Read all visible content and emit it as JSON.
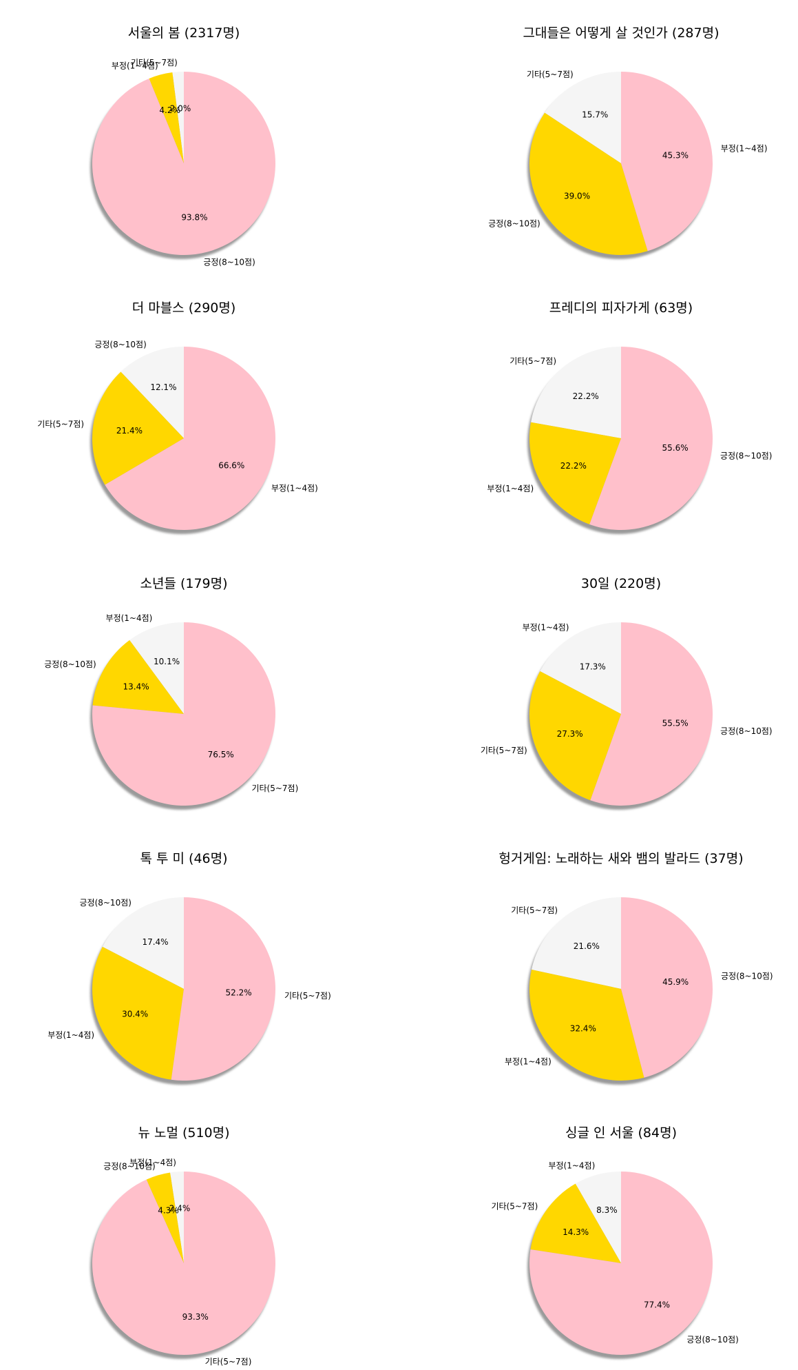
{
  "chart_data": [
    {
      "type": "pie",
      "title": "서울의 봄 (2317명)",
      "labels": [
        "기타(5~7점)",
        "부정(1~4점)",
        "긍정(8~10점)"
      ],
      "values": [
        2.0,
        4.2,
        93.8
      ],
      "value_labels": [
        "2.0%",
        "4.2%",
        "93.8%"
      ],
      "colors": [
        "#f5f5f5",
        "#ffd700",
        "#ffc0cb"
      ]
    },
    {
      "type": "pie",
      "title": "그대들은 어떻게 살 것인가 (287명)",
      "labels": [
        "기타(5~7점)",
        "긍정(8~10점)",
        "부정(1~4점)"
      ],
      "values": [
        15.7,
        39.0,
        45.3
      ],
      "value_labels": [
        "15.7%",
        "39.0%",
        "45.3%"
      ],
      "colors": [
        "#f5f5f5",
        "#ffd700",
        "#ffc0cb"
      ]
    },
    {
      "type": "pie",
      "title": "더 마블스 (290명)",
      "labels": [
        "긍정(8~10점)",
        "기타(5~7점)",
        "부정(1~4점)"
      ],
      "values": [
        12.1,
        21.4,
        66.6
      ],
      "value_labels": [
        "12.1%",
        "21.4%",
        "66.6%"
      ],
      "colors": [
        "#f5f5f5",
        "#ffd700",
        "#ffc0cb"
      ]
    },
    {
      "type": "pie",
      "title": "프레디의 피자가게 (63명)",
      "labels": [
        "기타(5~7점)",
        "부정(1~4점)",
        "긍정(8~10점)"
      ],
      "values": [
        22.2,
        22.2,
        55.6
      ],
      "value_labels": [
        "22.2%",
        "22.2%",
        "55.6%"
      ],
      "colors": [
        "#f5f5f5",
        "#ffd700",
        "#ffc0cb"
      ]
    },
    {
      "type": "pie",
      "title": "소년들 (179명)",
      "labels": [
        "부정(1~4점)",
        "긍정(8~10점)",
        "기타(5~7점)"
      ],
      "values": [
        10.1,
        13.4,
        76.5
      ],
      "value_labels": [
        "10.1%",
        "13.4%",
        "76.5%"
      ],
      "colors": [
        "#f5f5f5",
        "#ffd700",
        "#ffc0cb"
      ]
    },
    {
      "type": "pie",
      "title": "30일 (220명)",
      "labels": [
        "부정(1~4점)",
        "기타(5~7점)",
        "긍정(8~10점)"
      ],
      "values": [
        17.3,
        27.3,
        55.5
      ],
      "value_labels": [
        "17.3%",
        "27.3%",
        "55.5%"
      ],
      "colors": [
        "#f5f5f5",
        "#ffd700",
        "#ffc0cb"
      ]
    },
    {
      "type": "pie",
      "title": "톡 투 미 (46명)",
      "labels": [
        "긍정(8~10점)",
        "부정(1~4점)",
        "기타(5~7점)"
      ],
      "values": [
        17.4,
        30.4,
        52.2
      ],
      "value_labels": [
        "17.4%",
        "30.4%",
        "52.2%"
      ],
      "colors": [
        "#f5f5f5",
        "#ffd700",
        "#ffc0cb"
      ]
    },
    {
      "type": "pie",
      "title": "헝거게임: 노래하는 새와 뱀의 발라드 (37명)",
      "labels": [
        "기타(5~7점)",
        "부정(1~4점)",
        "긍정(8~10점)"
      ],
      "values": [
        21.6,
        32.4,
        45.9
      ],
      "value_labels": [
        "21.6%",
        "32.4%",
        "45.9%"
      ],
      "colors": [
        "#f5f5f5",
        "#ffd700",
        "#ffc0cb"
      ]
    },
    {
      "type": "pie",
      "title": "뉴 노멀 (510명)",
      "labels": [
        "부정(1~4점)",
        "긍정(8~10점)",
        "기타(5~7점)"
      ],
      "values": [
        2.4,
        4.3,
        93.3
      ],
      "value_labels": [
        "2.4%",
        "4.3%",
        "93.3%"
      ],
      "colors": [
        "#f5f5f5",
        "#ffd700",
        "#ffc0cb"
      ]
    },
    {
      "type": "pie",
      "title": "싱글 인 서울 (84명)",
      "labels": [
        "부정(1~4점)",
        "기타(5~7점)",
        "긍정(8~10점)"
      ],
      "values": [
        8.3,
        14.3,
        77.4
      ],
      "value_labels": [
        "8.3%",
        "14.3%",
        "77.4%"
      ],
      "colors": [
        "#f5f5f5",
        "#ffd700",
        "#ffc0cb"
      ]
    }
  ]
}
